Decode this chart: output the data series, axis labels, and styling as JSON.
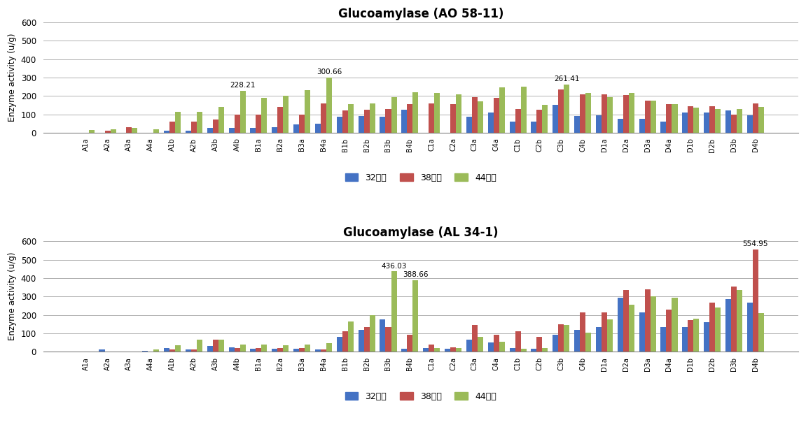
{
  "title1": "Glucoamylase (AO 58-11)",
  "title2": "Glucoamylase (AL 34-1)",
  "ylabel": "Enzyme activity (u/g)",
  "legend_labels": [
    "32시간",
    "38시간",
    "44시간"
  ],
  "colors": [
    "#4472C4",
    "#C0504D",
    "#9BBB59"
  ],
  "categories": [
    "A1a",
    "A2a",
    "A3a",
    "A4a",
    "A1b",
    "A2b",
    "A3b",
    "A4b",
    "B1a",
    "B2a",
    "B3a",
    "B4a",
    "B1b",
    "B2b",
    "B3b",
    "B4b",
    "C1a",
    "C2a",
    "C3a",
    "C4a",
    "C1b",
    "C2b",
    "C3b",
    "C4b",
    "D1a",
    "D2a",
    "D3a",
    "D4a",
    "D1b",
    "D2b",
    "D3b",
    "D4b"
  ],
  "ao_32": [
    0,
    0,
    0,
    0,
    10,
    10,
    25,
    25,
    25,
    30,
    45,
    50,
    85,
    90,
    85,
    125,
    0,
    0,
    85,
    110,
    60,
    60,
    150,
    90,
    95,
    75,
    75,
    60,
    110,
    110,
    120,
    95
  ],
  "ao_38": [
    0,
    10,
    30,
    0,
    60,
    60,
    70,
    100,
    100,
    140,
    100,
    160,
    120,
    125,
    130,
    155,
    160,
    155,
    195,
    190,
    130,
    125,
    235,
    210,
    210,
    205,
    175,
    155,
    145,
    145,
    100,
    160
  ],
  "ao_44": [
    15,
    20,
    25,
    20,
    115,
    115,
    140,
    228.21,
    190,
    200,
    230,
    300.66,
    155,
    160,
    195,
    220,
    215,
    210,
    170,
    248,
    250,
    150,
    261.41,
    215,
    195,
    215,
    175,
    155,
    135,
    130,
    130,
    140
  ],
  "al_32": [
    0,
    10,
    0,
    5,
    20,
    10,
    30,
    25,
    15,
    15,
    15,
    10,
    80,
    120,
    175,
    15,
    20,
    15,
    65,
    50,
    20,
    15,
    90,
    120,
    135,
    295,
    215,
    135,
    135,
    160,
    285,
    265
  ],
  "al_38": [
    0,
    0,
    0,
    0,
    10,
    10,
    65,
    20,
    20,
    20,
    20,
    10,
    110,
    135,
    135,
    90,
    40,
    25,
    145,
    90,
    110,
    80,
    150,
    215,
    215,
    335,
    340,
    230,
    170,
    265,
    355,
    554.95
  ],
  "al_44": [
    0,
    0,
    0,
    10,
    35,
    65,
    65,
    40,
    40,
    35,
    40,
    45,
    165,
    200,
    436.03,
    388.66,
    20,
    20,
    80,
    55,
    15,
    20,
    145,
    105,
    175,
    255,
    300,
    295,
    180,
    240,
    335,
    210
  ],
  "ao_annotations": [
    {
      "idx": 7,
      "series": 2,
      "text": "228.21"
    },
    {
      "idx": 11,
      "series": 2,
      "text": "300.66"
    },
    {
      "idx": 22,
      "series": 2,
      "text": "261.41"
    }
  ],
  "al_annotations": [
    {
      "idx": 14,
      "series": 2,
      "text": "436.03"
    },
    {
      "idx": 15,
      "series": 2,
      "text": "388.66"
    },
    {
      "idx": 31,
      "series": 1,
      "text": "554.95"
    }
  ],
  "ylim": [
    0,
    600
  ],
  "yticks": [
    0,
    100,
    200,
    300,
    400,
    500,
    600
  ],
  "background_color": "#FFFFFF",
  "grid_color": "#B0B0B0"
}
